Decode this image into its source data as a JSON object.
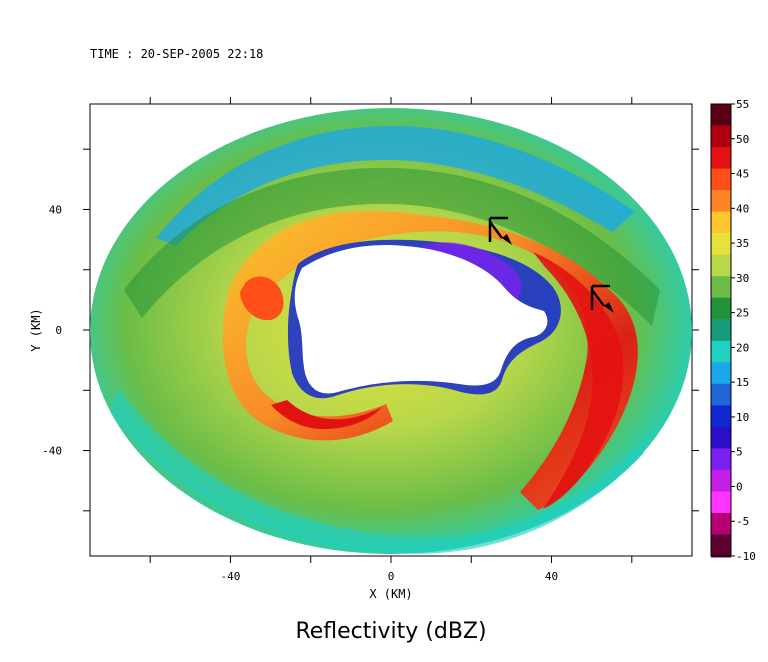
{
  "chart_data": {
    "type": "heatmap",
    "time_label": "TIME : 20-SEP-2005 22:18",
    "title": "Reflectivity (dBZ)",
    "xlabel": "X (KM)",
    "ylabel": "Y (KM)",
    "xlim": [
      -75,
      75
    ],
    "ylim": [
      -75,
      75
    ],
    "x_ticks": [
      -40,
      0,
      40
    ],
    "y_ticks": [
      40,
      0,
      -40
    ],
    "x_minor_ticks": [
      -60,
      -40,
      -20,
      0,
      20,
      40,
      60
    ],
    "y_minor_ticks": [
      60,
      40,
      20,
      0,
      -20,
      -40,
      -60
    ],
    "colorbar": {
      "min": -10,
      "max": 55,
      "labels": [
        55,
        50,
        45,
        40,
        35,
        30,
        25,
        20,
        15,
        10,
        5,
        0,
        -5,
        -10
      ],
      "colors": [
        "#5a0015",
        "#b00010",
        "#e31212",
        "#ff4f18",
        "#ff8524",
        "#ffc52c",
        "#e6e23b",
        "#b8d74a",
        "#6bbd47",
        "#239238",
        "#169c7a",
        "#20d0c0",
        "#1ba8e8",
        "#1f67d8",
        "#1227d0",
        "#2b0ec8",
        "#7b20f0",
        "#c81fe8",
        "#ff34ff",
        "#b70074",
        "#5e0030"
      ]
    },
    "coverage": {
      "center": [
        0,
        0
      ],
      "outer_radius_x": 75,
      "outer_radius_y": 55,
      "inner_eye_center": [
        18,
        2
      ],
      "inner_eye_rx": 28,
      "inner_eye_ry": 16
    },
    "markers": [
      {
        "x": 26,
        "y": 33
      },
      {
        "x": 55,
        "y": 10
      }
    ],
    "features": [
      {
        "name": "outer_band_west",
        "x": -60,
        "y": -10,
        "value": 30
      },
      {
        "name": "eyewall_south",
        "x": -5,
        "y": -30,
        "value": 45
      },
      {
        "name": "eyewall_east",
        "x": 52,
        "y": 5,
        "value": 47
      },
      {
        "name": "eyewall_north",
        "x": 30,
        "y": 22,
        "value": 40
      }
    ]
  }
}
